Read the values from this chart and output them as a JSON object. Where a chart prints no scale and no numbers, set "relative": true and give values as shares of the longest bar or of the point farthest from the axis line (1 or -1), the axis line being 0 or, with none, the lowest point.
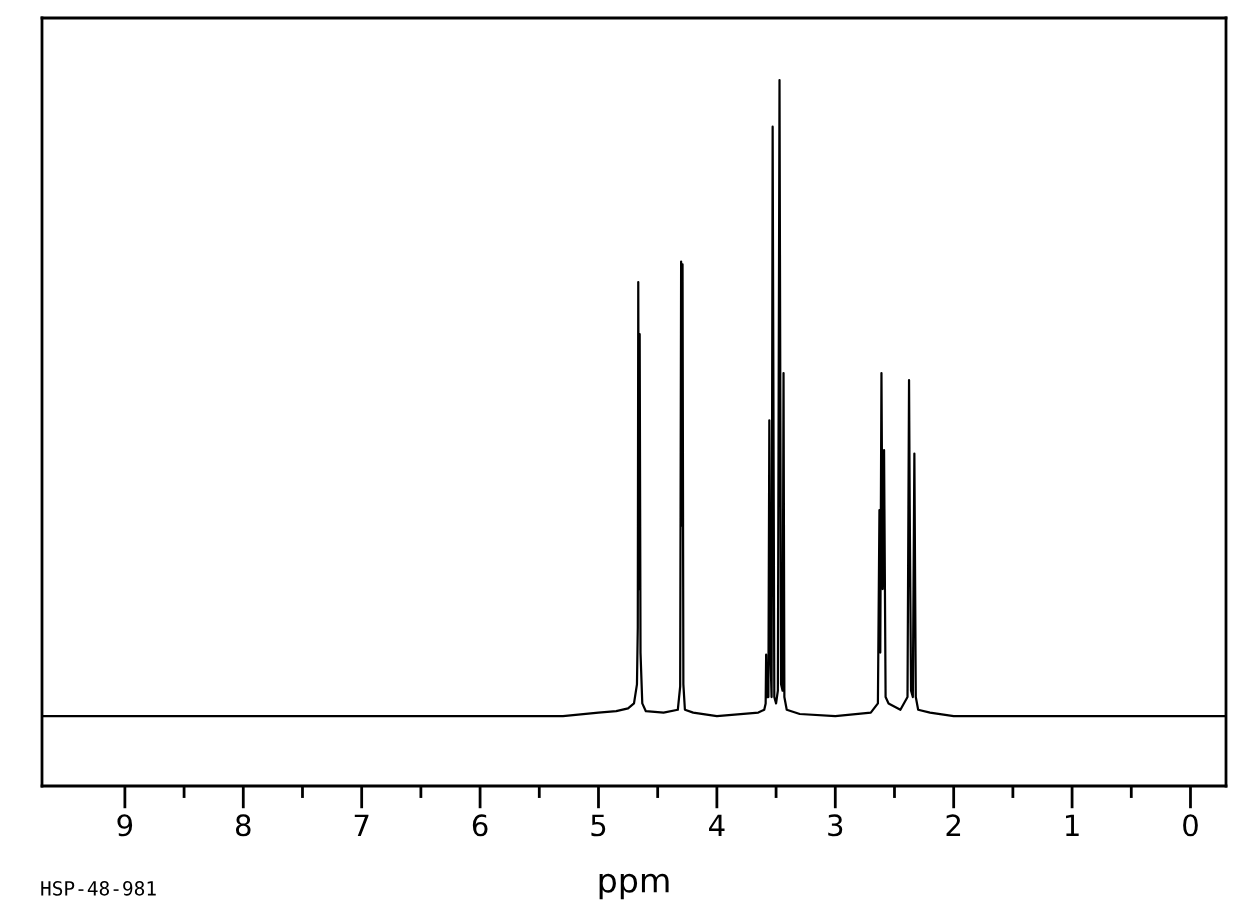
{
  "chart_data": {
    "type": "line",
    "relative": true,
    "xlabel": "ppm",
    "annotations": [
      "HSP-48-981"
    ],
    "xlim": [
      9.7,
      -0.3
    ],
    "xticks": [
      9,
      8,
      7,
      6,
      5,
      4,
      3,
      2,
      1,
      0,
      {
        "value": 8.5,
        "label": null
      },
      {
        "value": 7.5,
        "label": null
      },
      {
        "value": 6.5,
        "label": null
      },
      {
        "value": 5.5,
        "label": null
      },
      {
        "value": 4.5,
        "label": null
      },
      {
        "value": 3.5,
        "label": null
      },
      {
        "value": 2.5,
        "label": null
      },
      {
        "value": 1.5,
        "label": null
      },
      {
        "value": 0.5,
        "label": null
      }
    ],
    "series": [
      {
        "color": "#000000",
        "x": [
          9.7,
          5.3,
          5.0,
          4.85,
          4.75,
          4.7,
          4.675,
          4.668,
          4.664,
          4.658,
          4.652,
          4.645,
          4.63,
          4.6,
          4.45,
          4.33,
          4.31,
          4.302,
          4.296,
          4.29,
          4.283,
          4.27,
          4.2,
          4.0,
          3.65,
          3.6,
          3.588,
          3.584,
          3.578,
          3.565,
          3.557,
          3.548,
          3.538,
          3.529,
          3.515,
          3.5,
          3.485,
          3.471,
          3.458,
          3.445,
          3.437,
          3.43,
          3.41,
          3.3,
          3.0,
          2.7,
          2.64,
          2.627,
          2.62,
          2.61,
          2.6,
          2.588,
          2.575,
          2.55,
          2.45,
          2.39,
          2.377,
          2.37,
          2.36,
          2.345,
          2.332,
          2.32,
          2.3,
          2.2,
          2.0,
          -0.3
        ],
        "values": [
          0.099,
          0.099,
          0.104,
          0.106,
          0.11,
          0.117,
          0.144,
          0.225,
          0.714,
          0.279,
          0.64,
          0.189,
          0.117,
          0.106,
          0.104,
          0.108,
          0.141,
          0.743,
          0.369,
          0.739,
          0.144,
          0.108,
          0.104,
          0.099,
          0.104,
          0.108,
          0.117,
          0.186,
          0.126,
          0.126,
          0.518,
          0.189,
          0.126,
          0.934,
          0.126,
          0.117,
          0.135,
          1,
          0.144,
          0.135,
          0.585,
          0.126,
          0.108,
          0.102,
          0.099,
          0.104,
          0.117,
          0.391,
          0.189,
          0.585,
          0.279,
          0.476,
          0.126,
          0.117,
          0.108,
          0.126,
          0.575,
          0.362,
          0.135,
          0.126,
          0.471,
          0.126,
          0.108,
          0.104,
          0.099,
          0.099
        ]
      }
    ]
  }
}
